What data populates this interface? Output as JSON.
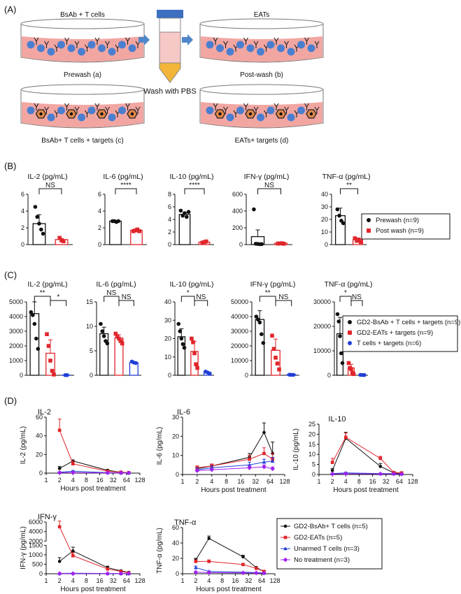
{
  "colors": {
    "black": "#111111",
    "red": "#e0262b",
    "blue": "#1f3fd6",
    "purple": "#a020f0",
    "dish_fill": "#f2a6a2",
    "tcell": "#4a7fd0",
    "target": "#e0884a",
    "tube_cap": "#3d6fc0",
    "tube_mid": "#f6c9c6",
    "tube_bot": "#f2b53a",
    "arrow": "#4f86c9"
  },
  "panel_a": {
    "label": "(A)",
    "dishes": [
      {
        "top_label": "BsAb + T cells",
        "bottom_label": "Prewash (a)",
        "targets": false
      },
      {
        "top_label": "EATs",
        "bottom_label": "Post-wash (b)",
        "targets": false
      },
      {
        "top_label": "",
        "bottom_label": "BsAb+ T cells + targets (c)",
        "targets": true
      },
      {
        "top_label": "",
        "bottom_label": "EATs+ targets (d)",
        "targets": true
      }
    ],
    "tube_label": "Wash with PBS"
  },
  "panel_b": {
    "label": "(B)",
    "legend": [
      {
        "name": "Prewash (n=9)",
        "color_key": "black",
        "marker": "circle"
      },
      {
        "name": "Post wash (n=9)",
        "color_key": "red",
        "marker": "square"
      }
    ],
    "charts": [
      {
        "title": "IL-2 (pg/mL)",
        "ylim": [
          0,
          6
        ],
        "ticks": [
          0,
          2,
          4,
          6
        ],
        "bars": [
          2.5,
          0.6
        ],
        "points": [
          [
            4.5,
            3.3,
            2.5,
            1.8,
            1.3
          ],
          [
            0.8,
            0.5,
            0.4
          ]
        ],
        "sig": [
          {
            "from": 0,
            "to": 1,
            "text": "NS"
          }
        ]
      },
      {
        "title": "IL-6 (pg/mL)",
        "ylim": [
          0,
          6
        ],
        "ticks": [
          0,
          2,
          4,
          6
        ],
        "bars": [
          2.8,
          1.7
        ],
        "points": [
          [
            2.8,
            2.8,
            2.7,
            2.8
          ],
          [
            1.6,
            1.7,
            1.8,
            1.6
          ]
        ],
        "sig": [
          {
            "from": 0,
            "to": 1,
            "text": "****"
          }
        ]
      },
      {
        "title": "IL-10 (pg/mL)",
        "ylim": [
          0,
          8
        ],
        "ticks": [
          0,
          2,
          4,
          6,
          8
        ],
        "bars": [
          4.8,
          0.4
        ],
        "points": [
          [
            5.4,
            4.6,
            5.0,
            4.4,
            5.2
          ],
          [
            0.3,
            0.4,
            0.5
          ]
        ],
        "sig": [
          {
            "from": 0,
            "to": 1,
            "text": "****"
          }
        ]
      },
      {
        "title": "IFN-γ (pg/mL)",
        "ylim": [
          0,
          600
        ],
        "ticks": [
          0,
          200,
          400,
          600
        ],
        "bars": [
          95,
          15
        ],
        "points": [
          [
            420,
            10,
            8,
            5,
            6
          ],
          [
            12,
            14,
            15,
            10
          ]
        ],
        "err": [
          80,
          5
        ],
        "sig": [
          {
            "from": 0,
            "to": 1,
            "text": "NS"
          }
        ]
      },
      {
        "title": "TNF-α (pg/mL)",
        "ylim": [
          0,
          40
        ],
        "ticks": [
          0,
          10,
          20,
          30,
          40
        ],
        "bars": [
          23,
          4
        ],
        "points": [
          [
            28,
            23,
            19,
            17
          ],
          [
            5,
            3,
            4,
            2
          ]
        ],
        "err": [
          6,
          1
        ],
        "sig": [
          {
            "from": 0,
            "to": 1,
            "text": "**"
          }
        ]
      }
    ]
  },
  "panel_c": {
    "label": "(C)",
    "legend": [
      {
        "name": "GD2-BsAb + T cells + targets (n=9)",
        "color_key": "black",
        "marker": "circle"
      },
      {
        "name": "GD2-EATs + targets (n=9)",
        "color_key": "red",
        "marker": "square"
      },
      {
        "name": "T cells + targets (n=6)",
        "color_key": "blue",
        "marker": "circle"
      }
    ],
    "charts": [
      {
        "title": "IL-2 (pg/mL)",
        "ylim": [
          0,
          5000
        ],
        "ticks": [
          0,
          1000,
          2000,
          3000,
          4000,
          5000
        ],
        "bars": [
          4200,
          1500,
          10
        ],
        "points": [
          [
            4300,
            4100,
            3500,
            2500,
            1800
          ],
          [
            2800,
            2000,
            1000,
            300,
            50
          ],
          [
            10,
            10
          ]
        ],
        "sig": [
          {
            "from": 0,
            "to": 1,
            "text": "**"
          },
          {
            "from": 1,
            "to": 2,
            "text": "*"
          }
        ]
      },
      {
        "title": "IL-6 (pg/mL)",
        "ylim": [
          0,
          15
        ],
        "ticks": [
          0,
          5,
          10,
          15
        ],
        "bars": [
          8.5,
          7.6,
          2.6
        ],
        "points": [
          [
            10.5,
            9,
            8,
            7,
            6.5
          ],
          [
            8.5,
            8,
            7.5,
            7,
            6.5
          ],
          [
            2.8,
            2.6,
            2.5
          ]
        ],
        "sig": [
          {
            "from": 0,
            "to": 1,
            "text": "NS"
          },
          {
            "from": 1,
            "to": 2,
            "text": "NS"
          }
        ]
      },
      {
        "title": "IL-10 (pg/mL)",
        "ylim": [
          0,
          40
        ],
        "ticks": [
          0,
          10,
          20,
          30,
          40
        ],
        "bars": [
          21,
          13,
          1.5
        ],
        "points": [
          [
            28,
            24,
            20,
            17,
            15
          ],
          [
            20,
            18,
            12,
            6,
            4
          ],
          [
            2,
            1.5,
            1
          ]
        ],
        "sig": [
          {
            "from": 0,
            "to": 1,
            "text": "*"
          },
          {
            "from": 1,
            "to": 2,
            "text": "NS"
          }
        ]
      },
      {
        "title": "IFN-γ (pg/mL)",
        "ylim": [
          0,
          50000
        ],
        "ticks": [
          0,
          10000,
          20000,
          30000,
          40000,
          50000
        ],
        "bars": [
          38000,
          17000,
          500
        ],
        "points": [
          [
            40000,
            38000,
            36000,
            28000,
            22000
          ],
          [
            27000,
            18000,
            12000,
            8000,
            4000
          ],
          [
            400,
            300,
            300
          ]
        ],
        "sig": [
          {
            "from": 0,
            "to": 1,
            "text": "**"
          },
          {
            "from": 1,
            "to": 2,
            "text": "NS"
          }
        ]
      },
      {
        "title": "TNF-α (pg/mL)",
        "ylim": [
          0,
          30000
        ],
        "ticks": [
          0,
          10000,
          20000,
          30000
        ],
        "bars": [
          17000,
          3000,
          100
        ],
        "points": [
          [
            25000,
            22000,
            16000,
            9000,
            5000
          ],
          [
            5000,
            3000,
            2500,
            1000,
            500
          ],
          [
            150,
            100,
            100
          ]
        ],
        "sig": [
          {
            "from": 0,
            "to": 1,
            "text": "*"
          },
          {
            "from": 1,
            "to": 2,
            "text": "NS"
          }
        ]
      }
    ]
  },
  "chart_data": {
    "type": "line",
    "panel_label": "(D)",
    "xlabel": "Hours post treatment",
    "x": [
      2,
      4,
      24,
      48,
      72
    ],
    "xticks": [
      1,
      2,
      4,
      8,
      16,
      32,
      64,
      128
    ],
    "series_names": [
      "GD2-BsAb+ T cells (n=5)",
      "GD2-EATs (n=5)",
      "Unarmed T cells (n=3)",
      "No treatment (n=3)"
    ],
    "series_color_keys": [
      "black",
      "red",
      "blue",
      "purple"
    ],
    "charts": [
      {
        "title": "IL-2",
        "ylabel": "IL-2 (pg/mL)",
        "ylim": [
          0,
          60
        ],
        "yticks": [
          0,
          20,
          40,
          60
        ],
        "values": [
          [
            5,
            13,
            3,
            1,
            0.5
          ],
          [
            46,
            10,
            2,
            1,
            0.5
          ],
          [
            1,
            2,
            0.5,
            0.3,
            0.2
          ],
          [
            0.5,
            0.5,
            0.3,
            0.2,
            0.2
          ]
        ],
        "errors": [
          [
            2,
            1,
            1,
            0.5,
            0.3
          ],
          [
            12,
            3,
            1,
            0.5,
            0.3
          ],
          [
            0.5,
            0.5,
            0.3,
            0.2,
            0.1
          ],
          [
            0.3,
            0.3,
            0.2,
            0.1,
            0.1
          ]
        ]
      },
      {
        "title": "IL-6",
        "ylabel": "IL-6 (pg/mL)",
        "ylim": [
          0,
          30
        ],
        "yticks": [
          0,
          10,
          20,
          30
        ],
        "values": [
          [
            3,
            4.5,
            9,
            22,
            11
          ],
          [
            3.5,
            4.5,
            8,
            11,
            8
          ],
          [
            2.5,
            3.5,
            5,
            6.5,
            7
          ],
          [
            2,
            2.5,
            3.5,
            4,
            3
          ]
        ],
        "errors": [
          [
            1,
            1,
            2,
            5,
            6
          ],
          [
            1,
            1,
            2,
            3,
            3
          ],
          [
            1,
            1,
            1.5,
            1.5,
            2
          ],
          [
            0.5,
            0.5,
            1,
            1,
            1
          ]
        ]
      },
      {
        "title": "IL-10",
        "ylabel": "IL-10 (pg/mL)",
        "ylim": [
          0,
          25
        ],
        "yticks": [
          0,
          5,
          10,
          15,
          20,
          25
        ],
        "values": [
          [
            2,
            18,
            4,
            0.8,
            0.5
          ],
          [
            6,
            18.5,
            8,
            1,
            0.8
          ],
          [
            0.5,
            0.8,
            0.5,
            0.4,
            0.3
          ],
          [
            0.3,
            0.4,
            0.3,
            0.3,
            0.2
          ]
        ],
        "errors": [
          [
            1,
            3,
            1.5,
            0.3,
            0.2
          ],
          [
            2,
            2,
            1,
            0.4,
            0.3
          ],
          [
            0.2,
            0.3,
            0.2,
            0.1,
            0.1
          ],
          [
            0.1,
            0.1,
            0.1,
            0.1,
            0.1
          ]
        ]
      },
      {
        "title": "IFN-γ",
        "ylabel": "IFN-γ (pg/mL)",
        "broken_axis": {
          "break_low": 1500,
          "break_high": 2000,
          "upper_max": 6000
        },
        "ylim": [
          0,
          6000
        ],
        "yticks": [
          0,
          500,
          1000,
          1500,
          2000,
          4000,
          6000
        ],
        "values": [
          [
            650,
            1200,
            320,
            150,
            70
          ],
          [
            5000,
            950,
            250,
            120,
            50
          ],
          [
            20,
            30,
            15,
            10,
            10
          ],
          [
            10,
            10,
            10,
            10,
            10
          ]
        ],
        "errors": [
          [
            200,
            200,
            80,
            40,
            20
          ],
          [
            1200,
            150,
            60,
            30,
            15
          ],
          [
            10,
            10,
            5,
            5,
            5
          ],
          [
            5,
            5,
            5,
            5,
            5
          ]
        ]
      },
      {
        "title": "TNF-α",
        "ylabel": "TNF-α (pg/mL)",
        "ylim": [
          0,
          60
        ],
        "yticks": [
          0,
          20,
          40,
          60
        ],
        "values": [
          [
            18,
            46,
            22,
            8,
            3
          ],
          [
            16,
            16,
            12,
            7,
            3
          ],
          [
            8,
            3,
            2,
            1.5,
            1
          ],
          [
            2,
            1.5,
            1,
            1,
            0.8
          ]
        ],
        "errors": [
          [
            2,
            3,
            2,
            1,
            0.5
          ],
          [
            2,
            2,
            1.5,
            1,
            0.5
          ],
          [
            2,
            0.5,
            0.3,
            0.3,
            0.2
          ],
          [
            0.5,
            0.3,
            0.2,
            0.2,
            0.1
          ]
        ]
      }
    ]
  }
}
